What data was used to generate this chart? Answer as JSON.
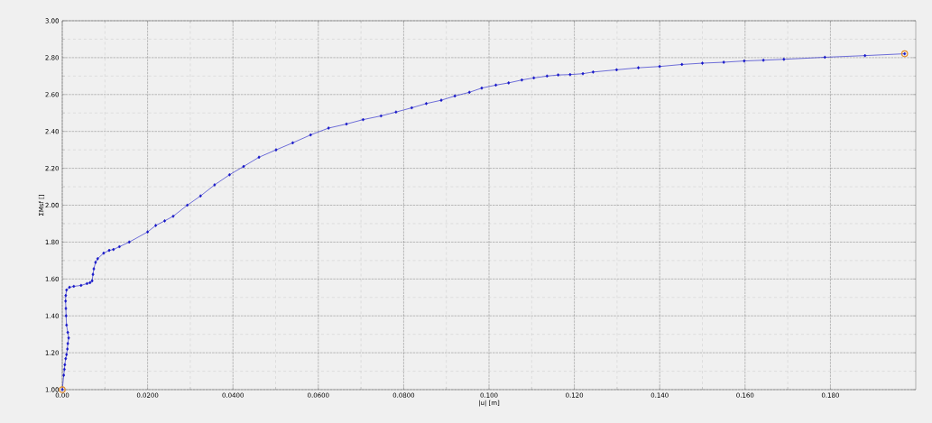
{
  "chart_data": {
    "type": "line",
    "xlabel": "|u| [m]",
    "ylabel": "ΣMsf []",
    "xlim": [
      0,
      0.2
    ],
    "ylim": [
      1.0,
      3.0
    ],
    "xticks": [
      {
        "value": 0,
        "label": "0.00"
      },
      {
        "value": 0.02,
        "label": "0.0200"
      },
      {
        "value": 0.04,
        "label": "0.0400"
      },
      {
        "value": 0.06,
        "label": "0.0600"
      },
      {
        "value": 0.08,
        "label": "0.0800"
      },
      {
        "value": 0.1,
        "label": "0.100"
      },
      {
        "value": 0.12,
        "label": "0.120"
      },
      {
        "value": 0.14,
        "label": "0.140"
      },
      {
        "value": 0.16,
        "label": "0.160"
      },
      {
        "value": 0.18,
        "label": "0.180"
      }
    ],
    "yticks": [
      {
        "value": 1.0,
        "label": "1.00"
      },
      {
        "value": 1.2,
        "label": "1.20"
      },
      {
        "value": 1.4,
        "label": "1.40"
      },
      {
        "value": 1.6,
        "label": "1.60"
      },
      {
        "value": 1.8,
        "label": "1.80"
      },
      {
        "value": 2.0,
        "label": "2.00"
      },
      {
        "value": 2.2,
        "label": "2.20"
      },
      {
        "value": 2.4,
        "label": "2.40"
      },
      {
        "value": 2.6,
        "label": "2.60"
      },
      {
        "value": 2.8,
        "label": "2.80"
      },
      {
        "value": 3.0,
        "label": "3.00"
      }
    ],
    "grid": true,
    "legend": false,
    "series": [
      {
        "color": "#1414c8",
        "marker": "diamond",
        "line_style": "solid",
        "x": [
          0,
          0.00035,
          0.0005,
          0.0006,
          0.0008,
          0.001,
          0.0012,
          0.0013,
          0.0015,
          0.0013,
          0.001,
          0.0009,
          0.00085,
          0.00078,
          0.00082,
          0.001,
          0.0017,
          0.0027,
          0.0044,
          0.0058,
          0.0065,
          0.007,
          0.0072,
          0.0074,
          0.0078,
          0.0083,
          0.0097,
          0.011,
          0.012,
          0.0134,
          0.0157,
          0.02,
          0.0219,
          0.024,
          0.026,
          0.0293,
          0.0324,
          0.0357,
          0.0392,
          0.0425,
          0.0461,
          0.0501,
          0.054,
          0.0582,
          0.0624,
          0.0666,
          0.0705,
          0.0747,
          0.0782,
          0.0819,
          0.0853,
          0.0888,
          0.092,
          0.0954,
          0.0983,
          0.1016,
          0.1046,
          0.1077,
          0.1105,
          0.1136,
          0.1162,
          0.119,
          0.122,
          0.1244,
          0.1299,
          0.135,
          0.14,
          0.1452,
          0.15,
          0.155,
          0.1598,
          0.1643,
          0.1691,
          0.1787,
          0.1881,
          0.1974
        ],
        "values": [
          1.0,
          1.078,
          1.11,
          1.135,
          1.168,
          1.19,
          1.22,
          1.25,
          1.28,
          1.31,
          1.35,
          1.4,
          1.44,
          1.48,
          1.51,
          1.54,
          1.555,
          1.56,
          1.565,
          1.575,
          1.58,
          1.59,
          1.625,
          1.655,
          1.69,
          1.71,
          1.74,
          1.755,
          1.76,
          1.775,
          1.8,
          1.855,
          1.89,
          1.915,
          1.94,
          2.0,
          2.05,
          2.11,
          2.165,
          2.21,
          2.26,
          2.3,
          2.338,
          2.381,
          2.418,
          2.44,
          2.464,
          2.484,
          2.505,
          2.528,
          2.551,
          2.569,
          2.592,
          2.612,
          2.635,
          2.651,
          2.663,
          2.679,
          2.69,
          2.7,
          2.706,
          2.708,
          2.713,
          2.722,
          2.734,
          2.745,
          2.752,
          2.763,
          2.77,
          2.775,
          2.782,
          2.786,
          2.791,
          2.802,
          2.811,
          2.821
        ]
      },
      {
        "type": "scatter",
        "color": "#e08a2a",
        "marker": "circle",
        "x": [
          0,
          0.1974
        ],
        "values": [
          1.0,
          2.821
        ]
      }
    ]
  }
}
